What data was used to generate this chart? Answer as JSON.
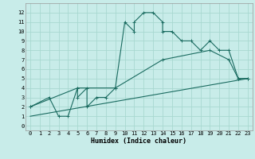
{
  "title": "",
  "xlabel": "Humidex (Indice chaleur)",
  "bg_color": "#c8ece9",
  "grid_color": "#a8d8d0",
  "line_color": "#1a6b60",
  "xlim": [
    -0.5,
    23.5
  ],
  "ylim": [
    -0.5,
    13
  ],
  "xticks": [
    0,
    1,
    2,
    3,
    4,
    5,
    6,
    7,
    8,
    9,
    10,
    11,
    12,
    13,
    14,
    15,
    16,
    17,
    18,
    19,
    20,
    21,
    22,
    23
  ],
  "yticks": [
    0,
    1,
    2,
    3,
    4,
    5,
    6,
    7,
    8,
    9,
    10,
    11,
    12
  ],
  "line1_x": [
    0,
    2,
    3,
    4,
    5,
    5,
    6,
    6,
    7,
    8,
    9,
    10,
    11,
    11,
    12,
    13,
    14,
    14,
    15,
    16,
    17,
    18,
    19,
    20,
    21,
    22,
    23
  ],
  "line1_y": [
    2,
    3,
    1,
    1,
    4,
    3,
    4,
    2,
    3,
    3,
    4,
    11,
    10,
    11,
    12,
    12,
    11,
    10,
    10,
    9,
    9,
    8,
    9,
    8,
    8,
    5,
    5
  ],
  "line2_x": [
    0,
    5,
    9,
    14,
    19,
    21,
    22,
    23
  ],
  "line2_y": [
    2,
    4,
    4,
    7,
    8,
    7,
    5,
    5
  ],
  "line3_x": [
    0,
    23
  ],
  "line3_y": [
    1,
    5
  ],
  "tick_fontsize": 5,
  "xlabel_fontsize": 6,
  "lw": 0.8,
  "ms": 2.5
}
